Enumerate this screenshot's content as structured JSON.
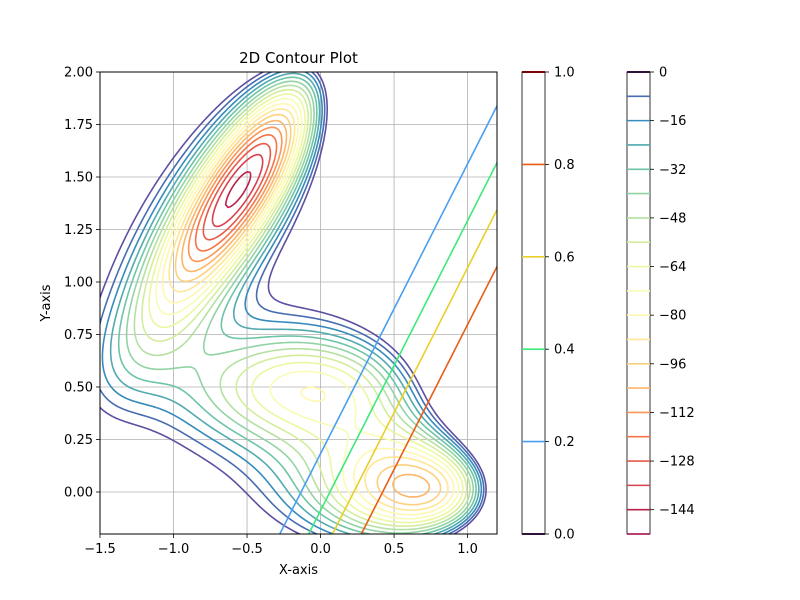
{
  "chart_data": {
    "type": "contour",
    "title": "2D Contour Plot",
    "xlabel": "X-axis",
    "ylabel": "Y-axis",
    "xlim": [
      -1.5,
      1.2
    ],
    "ylim": [
      -0.2,
      2.0
    ],
    "grid": true,
    "x_ticks": [
      -1.5,
      -1.0,
      -0.5,
      0.0,
      0.5,
      1.0
    ],
    "x_tick_labels": [
      "−1.5",
      "−1.0",
      "−0.5",
      "0.0",
      "0.5",
      "1.0"
    ],
    "y_ticks": [
      0.0,
      0.25,
      0.5,
      0.75,
      1.0,
      1.25,
      1.5,
      1.75,
      2.0
    ],
    "y_tick_labels": [
      "0.00",
      "0.25",
      "0.50",
      "0.75",
      "1.00",
      "1.25",
      "1.50",
      "1.75",
      "2.00"
    ],
    "muller_contours": {
      "colormap": "Spectral",
      "levels": [
        -152,
        -144,
        -136,
        -128,
        -120,
        -112,
        -104,
        -96,
        -88,
        -80,
        -72,
        -64,
        -56,
        -48,
        -40,
        -32,
        -24,
        -16,
        -8,
        0
      ],
      "colorbar_ticks": [
        0,
        -16,
        -32,
        -48,
        -64,
        -80,
        -96,
        -112,
        -128,
        -144
      ],
      "colorbar_tick_labels": [
        "0",
        "−16",
        "−32",
        "−48",
        "−64",
        "−80",
        "−96",
        "−112",
        "−128",
        "−144"
      ]
    },
    "sigmoid_contours": {
      "colormap": "turbo",
      "levels": [
        0.2,
        0.4,
        0.6,
        0.8
      ],
      "colorbar_ticks": [
        0.0,
        0.2,
        0.4,
        0.6,
        0.8,
        1.0
      ],
      "colorbar_tick_labels": [
        "0.0",
        "0.2",
        "0.4",
        "0.6",
        "0.8",
        "1.0"
      ],
      "colors": {
        "0.2": "#4a9ef0",
        "0.4": "#3ee87a",
        "0.6": "#e8cf2a",
        "0.8": "#e85c16"
      }
    },
    "colors": {
      "grid": "#b0b0b0",
      "spectral_stops": [
        "#9e0142",
        "#d53e4f",
        "#f46d43",
        "#fdae61",
        "#fee08b",
        "#ffffbf",
        "#e6f598",
        "#abdda4",
        "#66c2a5",
        "#3288bd",
        "#5e4fa2"
      ],
      "colorbar_top_line": "#30123b",
      "colorbar_bottom_line": "#7a0403"
    }
  }
}
